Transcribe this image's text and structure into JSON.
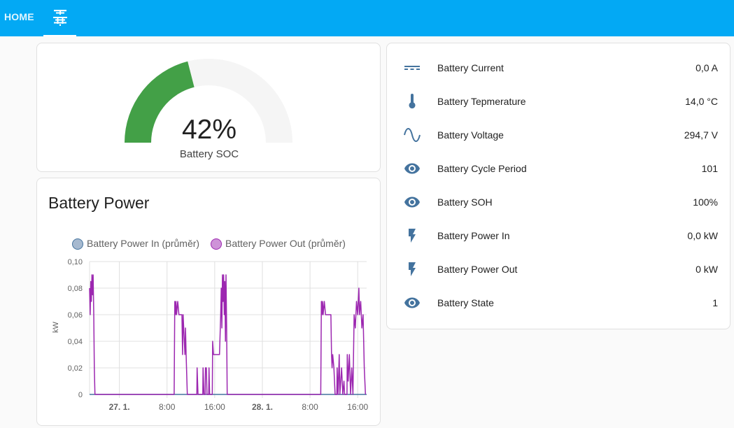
{
  "header": {
    "tabs": [
      {
        "label": "HOME",
        "active": false
      },
      {
        "label": "",
        "icon": "solar-panel-icon",
        "active": true
      }
    ],
    "background": "#03a9f4"
  },
  "gauge": {
    "value": 42,
    "value_text": "42%",
    "label": "Battery SOC",
    "min": 0,
    "max": 100,
    "color": "#43a047",
    "track_color": "#f5f5f5"
  },
  "entities": [
    {
      "icon": "current-dc-icon",
      "name": "Battery Current",
      "state": "0,0 A"
    },
    {
      "icon": "thermometer-icon",
      "name": "Battery Tepmerature",
      "state": "14,0 °C"
    },
    {
      "icon": "sine-wave-icon",
      "name": "Battery Voltage",
      "state": "294,7 V"
    },
    {
      "icon": "eye-icon",
      "name": "Battery Cycle Period",
      "state": "101"
    },
    {
      "icon": "eye-icon",
      "name": "Battery SOH",
      "state": "100%"
    },
    {
      "icon": "flash-icon",
      "name": "Battery Power In",
      "state": "0,0 kW"
    },
    {
      "icon": "flash-icon",
      "name": "Battery Power Out",
      "state": "0 kW"
    },
    {
      "icon": "eye-icon",
      "name": "Battery State",
      "state": "1"
    }
  ],
  "icon_color": "#44739e",
  "chart_card": {
    "title": "Battery Power"
  },
  "chart_data": {
    "type": "line",
    "ylabel": "kW",
    "ylim": [
      0,
      0.1
    ],
    "y_ticks": [
      "0,10",
      "0,08",
      "0,06",
      "0,04",
      "0,02",
      "0"
    ],
    "x_ticks": [
      {
        "label": "27. 1.",
        "bold": true,
        "t": 5
      },
      {
        "label": "8:00",
        "bold": false,
        "t": 13
      },
      {
        "label": "16:00",
        "bold": false,
        "t": 21
      },
      {
        "label": "28. 1.",
        "bold": true,
        "t": 29
      },
      {
        "label": "8:00",
        "bold": false,
        "t": 37
      },
      {
        "label": "16:00",
        "bold": false,
        "t": 45
      }
    ],
    "x_range": [
      0,
      46.5
    ],
    "grid": true,
    "legend_position": "top",
    "series": [
      {
        "name": "Battery Power In (průměr)",
        "color": "#44739e",
        "fill": "#a6b9cf",
        "points": [
          [
            0,
            0
          ],
          [
            46.5,
            0
          ]
        ]
      },
      {
        "name": "Battery Power Out (průměr)",
        "color": "#9c27b0",
        "fill": "#ce93d8",
        "points": [
          [
            0,
            0.08
          ],
          [
            0.1,
            0.06
          ],
          [
            0.2,
            0.085
          ],
          [
            0.3,
            0.07
          ],
          [
            0.4,
            0.09
          ],
          [
            0.5,
            0.075
          ],
          [
            0.6,
            0.09
          ],
          [
            0.7,
            0.06
          ],
          [
            0.8,
            0.02
          ],
          [
            0.9,
            0
          ],
          [
            14.2,
            0
          ],
          [
            14.3,
            0.07
          ],
          [
            14.4,
            0.06
          ],
          [
            14.5,
            0.07
          ],
          [
            14.6,
            0.06
          ],
          [
            14.8,
            0.07
          ],
          [
            15.0,
            0.06
          ],
          [
            15.5,
            0.06
          ],
          [
            15.6,
            0.03
          ],
          [
            15.7,
            0.06
          ],
          [
            15.9,
            0.04
          ],
          [
            16.0,
            0.03
          ],
          [
            16.1,
            0.05
          ],
          [
            16.2,
            0.03
          ],
          [
            16.4,
            0
          ],
          [
            18.0,
            0
          ],
          [
            18.05,
            0.02
          ],
          [
            18.2,
            0
          ],
          [
            19.0,
            0
          ],
          [
            19.05,
            0.02
          ],
          [
            19.2,
            0
          ],
          [
            19.4,
            0
          ],
          [
            19.45,
            0.02
          ],
          [
            19.6,
            0.02
          ],
          [
            19.7,
            0
          ],
          [
            20.0,
            0
          ],
          [
            20.05,
            0.02
          ],
          [
            20.15,
            0
          ],
          [
            20.6,
            0
          ],
          [
            20.65,
            0.04
          ],
          [
            20.8,
            0.03
          ],
          [
            20.9,
            0.03
          ],
          [
            21.5,
            0.03
          ],
          [
            21.8,
            0.03
          ],
          [
            22.0,
            0.06
          ],
          [
            22.1,
            0.08
          ],
          [
            22.2,
            0.05
          ],
          [
            22.3,
            0.09
          ],
          [
            22.4,
            0.07
          ],
          [
            22.5,
            0.09
          ],
          [
            22.6,
            0.06
          ],
          [
            22.7,
            0.085
          ],
          [
            22.8,
            0.04
          ],
          [
            22.9,
            0.09
          ],
          [
            23.0,
            0.05
          ],
          [
            23.1,
            0
          ],
          [
            38.8,
            0
          ],
          [
            38.9,
            0.07
          ],
          [
            39.0,
            0.06
          ],
          [
            39.1,
            0.07
          ],
          [
            39.2,
            0.06
          ],
          [
            39.4,
            0.07
          ],
          [
            39.6,
            0.06
          ],
          [
            40.5,
            0.06
          ],
          [
            40.6,
            0.03
          ],
          [
            40.7,
            0.02
          ],
          [
            40.8,
            0.03
          ],
          [
            41.0,
            0.02
          ],
          [
            41.2,
            0
          ],
          [
            41.5,
            0
          ],
          [
            41.55,
            0.02
          ],
          [
            41.7,
            0
          ],
          [
            41.9,
            0.03
          ],
          [
            42.0,
            0
          ],
          [
            42.3,
            0.02
          ],
          [
            42.5,
            0
          ],
          [
            42.7,
            0.01
          ],
          [
            42.8,
            0
          ],
          [
            43.2,
            0
          ],
          [
            43.25,
            0.03
          ],
          [
            43.4,
            0.01
          ],
          [
            43.6,
            0.03
          ],
          [
            43.8,
            0
          ],
          [
            44.0,
            0.02
          ],
          [
            44.2,
            0
          ],
          [
            44.4,
            0.06
          ],
          [
            44.6,
            0.05
          ],
          [
            44.8,
            0.07
          ],
          [
            45.0,
            0.06
          ],
          [
            45.2,
            0.08
          ],
          [
            45.3,
            0.06
          ],
          [
            45.5,
            0.07
          ],
          [
            45.7,
            0.05
          ],
          [
            45.9,
            0.06
          ],
          [
            46.1,
            0.02
          ],
          [
            46.3,
            0
          ]
        ]
      }
    ]
  }
}
